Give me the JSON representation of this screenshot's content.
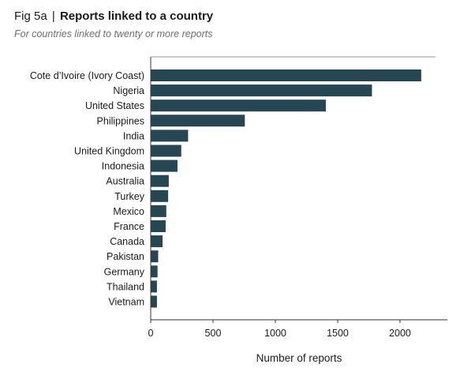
{
  "header": {
    "fig_label": "Fig 5a",
    "separator": "|",
    "title": "Reports linked to a country",
    "subtitle": "For countries linked to twenty or more reports"
  },
  "chart_data": {
    "type": "bar",
    "orientation": "horizontal",
    "categories": [
      "Cote d’Ivoire (Ivory Coast)",
      "Nigeria",
      "United States",
      "Philippines",
      "India",
      "United Kingdom",
      "Indonesia",
      "Australia",
      "Turkey",
      "Mexico",
      "France",
      "Canada",
      "Pakistan",
      "Germany",
      "Thailand",
      "Vietnam"
    ],
    "values": [
      2170,
      1775,
      1405,
      755,
      300,
      245,
      215,
      145,
      140,
      125,
      120,
      95,
      60,
      55,
      50,
      50
    ],
    "xlabel": "Number of reports",
    "ylabel": "",
    "xlim": [
      0,
      2380
    ],
    "xticks": [
      0,
      500,
      1000,
      1500,
      2000
    ],
    "grid": false,
    "bar_color": "#264653"
  }
}
